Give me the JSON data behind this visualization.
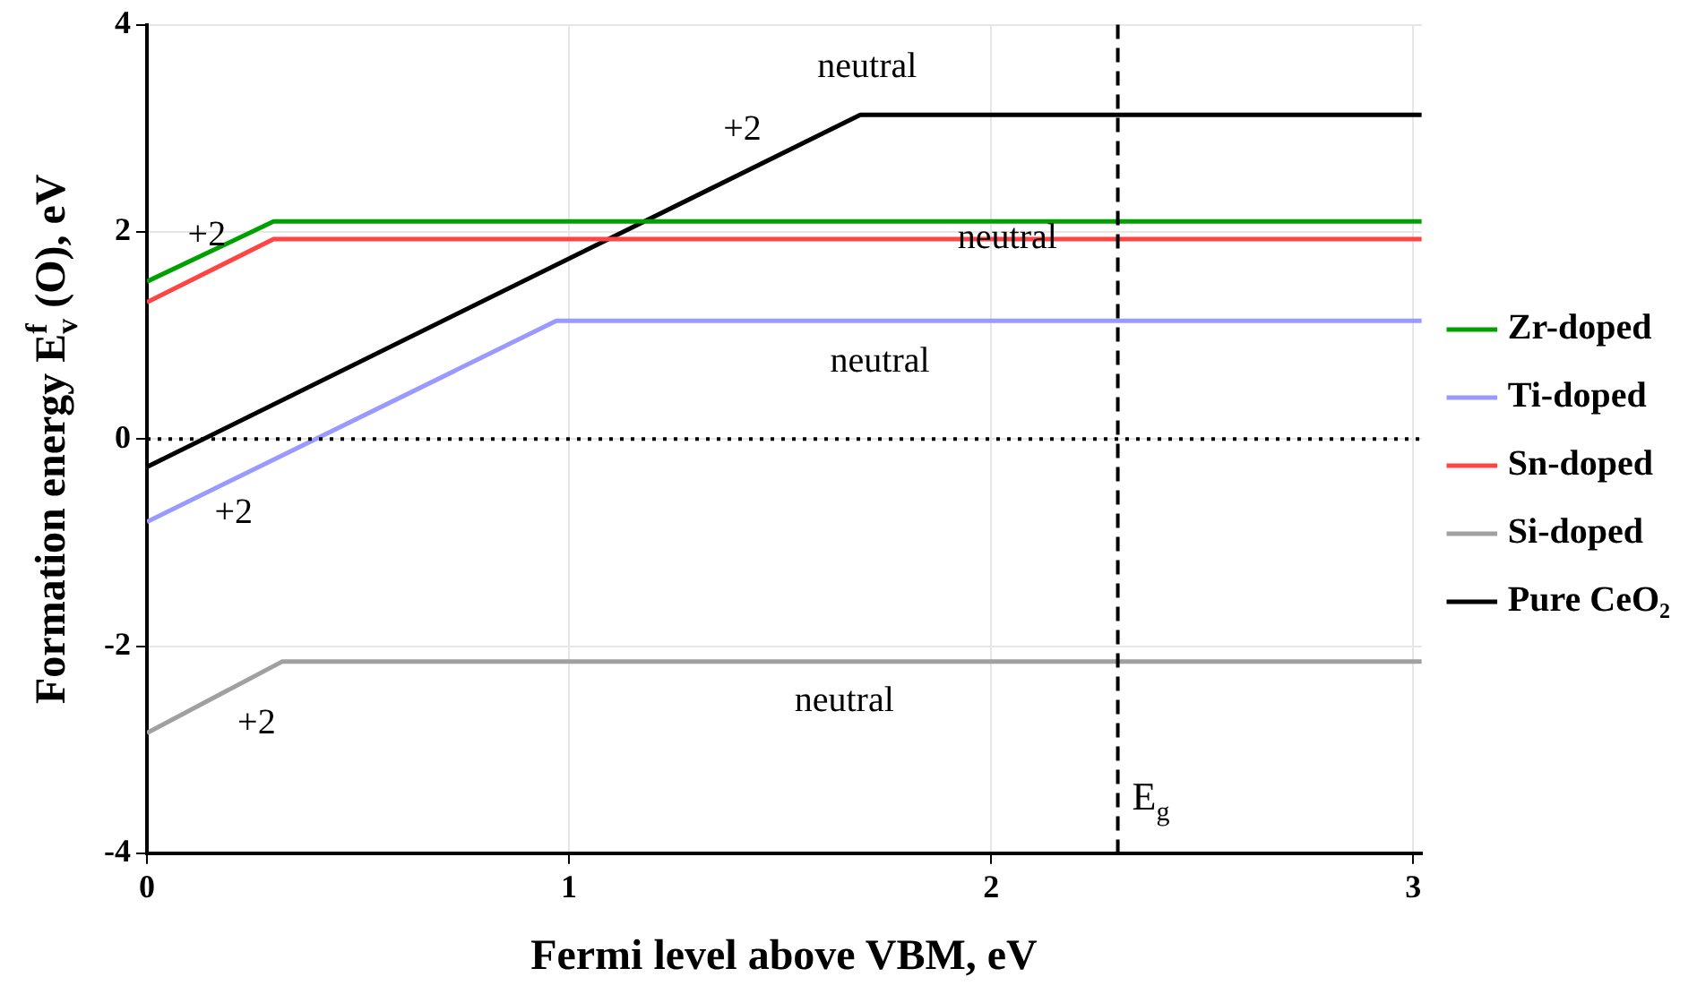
{
  "chart_data": {
    "type": "line",
    "xlabel": "Fermi level above VBM, eV",
    "ylabel": "Formation energy E$^{f}$$_{v}$ (O), eV",
    "xlim": [
      0,
      3.02
    ],
    "xticks": [
      0,
      1,
      2,
      3
    ],
    "ylim": [
      -4,
      4
    ],
    "yticks": [
      -4,
      -2,
      0,
      2,
      4
    ],
    "grid": true,
    "legend": "right",
    "marker": "none",
    "line_style": "solid",
    "series": [
      {
        "name": "Zr-doped",
        "color": "#00a000",
        "x": [
          0,
          0.3,
          3.02
        ],
        "values": [
          1.52,
          2.1,
          2.1
        ]
      },
      {
        "name": "Ti-doped",
        "color": "#9999ff",
        "x": [
          0,
          0.97,
          3.02
        ],
        "values": [
          -0.8,
          1.14,
          1.14
        ]
      },
      {
        "name": "Sn-doped",
        "color": "#ff4444",
        "x": [
          0,
          0.3,
          3.02
        ],
        "values": [
          1.32,
          1.93,
          1.93
        ]
      },
      {
        "name": "Si-doped",
        "color": "#a0a0a0",
        "x": [
          0,
          0.32,
          3.02
        ],
        "values": [
          -2.84,
          -2.15,
          -2.15
        ]
      },
      {
        "name": "Pure CeO₂",
        "color": "#000000",
        "x": [
          0,
          1.69,
          3.02
        ],
        "values": [
          -0.27,
          3.13,
          3.13
        ]
      }
    ],
    "ref_lines": [
      {
        "axis": "y",
        "value": 0,
        "color": "#000000",
        "line_style": "dotted"
      },
      {
        "axis": "x",
        "value": 2.3,
        "label": "E$_{g}$",
        "color": "#000000",
        "line_style": "dashed"
      }
    ],
    "annotations": [
      "+2",
      "+2",
      "neutral",
      "neutral",
      "neutral",
      "+2",
      "neutral",
      "+2"
    ]
  }
}
